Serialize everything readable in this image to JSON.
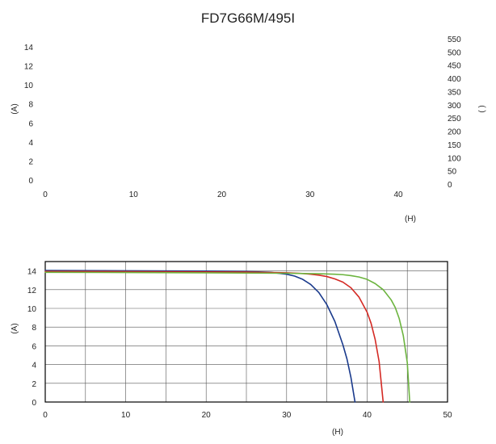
{
  "chart_data": [
    {
      "type": "line",
      "title": "FD7G66M/495I",
      "xlabel": "(H)",
      "ylabel": "(A)",
      "y2label": "( )",
      "x_ticks": [
        0,
        10,
        20,
        30,
        40
      ],
      "y_ticks": [
        0,
        2,
        4,
        6,
        8,
        10,
        12,
        14
      ],
      "y2_ticks": [
        0,
        50,
        100,
        150,
        200,
        250,
        300,
        350,
        400,
        450,
        500,
        550
      ],
      "xlim": [
        0,
        45
      ],
      "ylim": [
        0,
        14
      ],
      "y2lim": [
        0,
        550
      ],
      "grid": false,
      "series": []
    },
    {
      "type": "line",
      "title": "",
      "xlabel": "(H)",
      "ylabel": "(A)",
      "x_ticks": [
        0,
        10,
        20,
        30,
        40,
        50
      ],
      "y_ticks": [
        0,
        2,
        4,
        6,
        8,
        10,
        12,
        14
      ],
      "xlim": [
        0,
        50
      ],
      "ylim": [
        0,
        15
      ],
      "grid": true,
      "series": [
        {
          "color": "#1a3a8c",
          "x": [
            0,
            10,
            20,
            25,
            28,
            30,
            31,
            32,
            33,
            34,
            35,
            36,
            37,
            37.5,
            38,
            38.5
          ],
          "y": [
            14.05,
            14.02,
            13.98,
            13.94,
            13.85,
            13.65,
            13.45,
            13.1,
            12.55,
            11.7,
            10.4,
            8.6,
            6.1,
            4.6,
            2.6,
            0
          ]
        },
        {
          "color": "#d42a24",
          "x": [
            0,
            10,
            20,
            25,
            30,
            32,
            33,
            34,
            35,
            36,
            37,
            38,
            39,
            40,
            40.5,
            41,
            41.5,
            42
          ],
          "y": [
            13.95,
            13.93,
            13.9,
            13.87,
            13.8,
            13.72,
            13.65,
            13.55,
            13.4,
            13.15,
            12.8,
            12.2,
            11.2,
            9.6,
            8.4,
            6.7,
            4.3,
            0
          ]
        },
        {
          "color": "#6cb43f",
          "x": [
            0,
            10,
            20,
            30,
            34,
            36,
            37,
            38,
            39,
            40,
            41,
            42,
            43,
            43.5,
            44,
            44.5,
            45,
            45.3
          ],
          "y": [
            13.85,
            13.83,
            13.8,
            13.75,
            13.7,
            13.65,
            13.6,
            13.5,
            13.35,
            13.1,
            12.65,
            12.0,
            10.9,
            10.1,
            8.9,
            7.1,
            4.2,
            0
          ]
        }
      ]
    }
  ]
}
